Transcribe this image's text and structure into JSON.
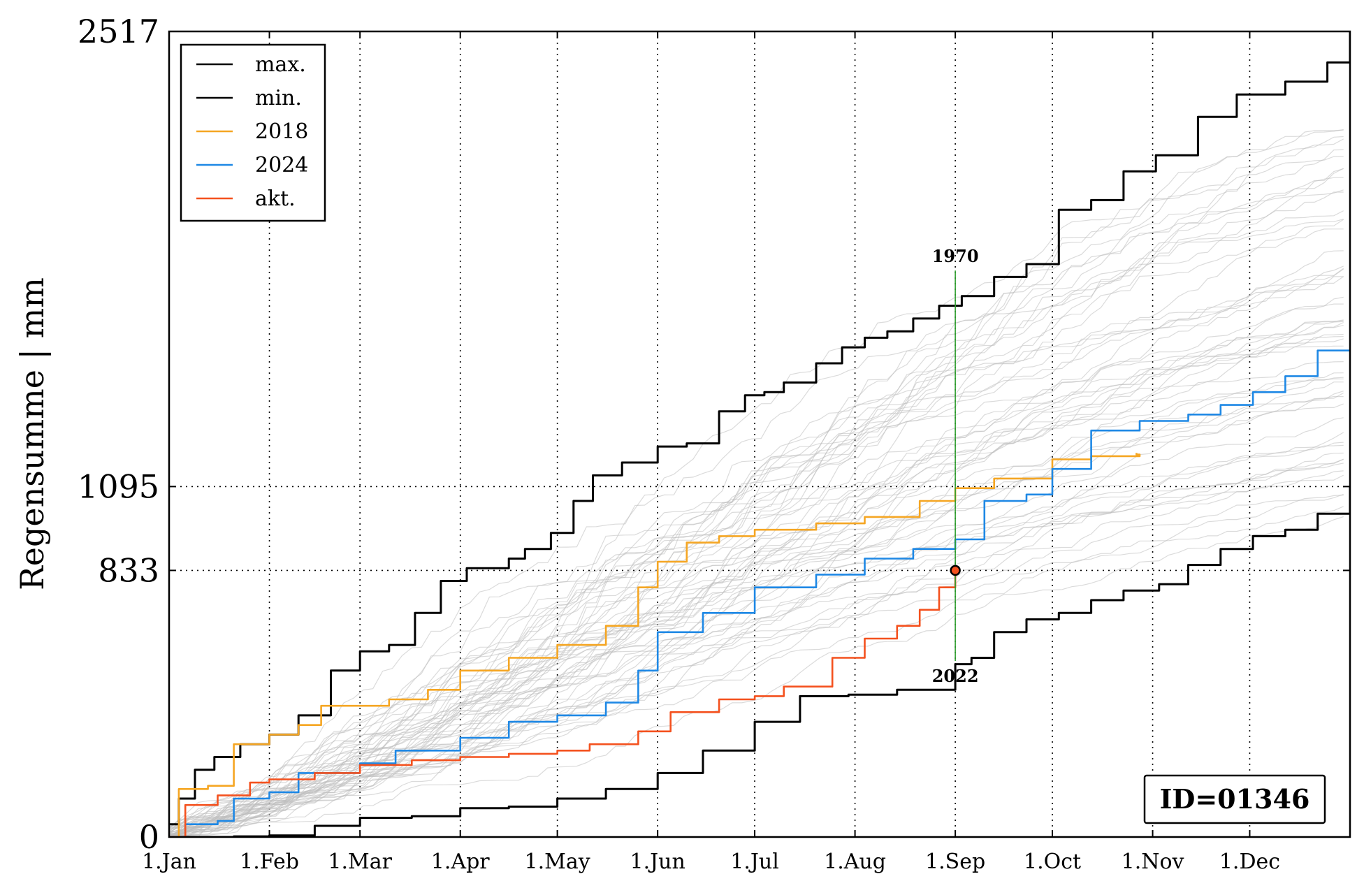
{
  "chart_data": {
    "type": "line",
    "title": "",
    "xlabel": "",
    "ylabel": "Regensumme | mm",
    "x_ticks": [
      "1.Jan",
      "1.Feb",
      "1.Mar",
      "1.Apr",
      "1.May",
      "1.Jun",
      "1.Jul",
      "1.Aug",
      "1.Sep",
      "1.Oct",
      "1.Nov",
      "1.Dec"
    ],
    "x_tick_days": [
      0,
      31,
      59,
      90,
      120,
      151,
      181,
      212,
      243,
      273,
      304,
      334
    ],
    "xlim": [
      0,
      365
    ],
    "y_ticks": [
      0,
      833,
      1095,
      2517
    ],
    "ylim": [
      0,
      2517
    ],
    "grid": "dotted",
    "legend": {
      "position": "top-left",
      "entries": [
        {
          "label": "max.",
          "color": "#000000"
        },
        {
          "label": "min.",
          "color": "#000000"
        },
        {
          "label": "2018",
          "color": "#f5a623"
        },
        {
          "label": "2024",
          "color": "#1e88e5"
        },
        {
          "label": "akt.",
          "color": "#f4511e"
        }
      ]
    },
    "series": [
      {
        "name": "max.",
        "color": "#000000",
        "points": [
          [
            0,
            40
          ],
          [
            3,
            120
          ],
          [
            8,
            210
          ],
          [
            14,
            250
          ],
          [
            22,
            290
          ],
          [
            31,
            320
          ],
          [
            40,
            380
          ],
          [
            50,
            520
          ],
          [
            59,
            580
          ],
          [
            68,
            600
          ],
          [
            76,
            700
          ],
          [
            84,
            800
          ],
          [
            92,
            840
          ],
          [
            105,
            870
          ],
          [
            110,
            900
          ],
          [
            118,
            950
          ],
          [
            125,
            1050
          ],
          [
            131,
            1130
          ],
          [
            140,
            1170
          ],
          [
            151,
            1220
          ],
          [
            160,
            1230
          ],
          [
            170,
            1330
          ],
          [
            178,
            1380
          ],
          [
            184,
            1390
          ],
          [
            190,
            1420
          ],
          [
            200,
            1480
          ],
          [
            208,
            1530
          ],
          [
            215,
            1560
          ],
          [
            222,
            1580
          ],
          [
            230,
            1620
          ],
          [
            238,
            1660
          ],
          [
            245,
            1690
          ],
          [
            255,
            1750
          ],
          [
            265,
            1790
          ],
          [
            275,
            1960
          ],
          [
            285,
            1990
          ],
          [
            295,
            2080
          ],
          [
            305,
            2130
          ],
          [
            318,
            2250
          ],
          [
            330,
            2320
          ],
          [
            345,
            2360
          ],
          [
            358,
            2420
          ],
          [
            365,
            2517
          ]
        ]
      },
      {
        "name": "min.",
        "color": "#000000",
        "points": [
          [
            0,
            0
          ],
          [
            20,
            2
          ],
          [
            31,
            5
          ],
          [
            45,
            35
          ],
          [
            59,
            60
          ],
          [
            75,
            65
          ],
          [
            90,
            90
          ],
          [
            105,
            95
          ],
          [
            120,
            120
          ],
          [
            135,
            150
          ],
          [
            151,
            200
          ],
          [
            165,
            270
          ],
          [
            181,
            360
          ],
          [
            195,
            440
          ],
          [
            210,
            445
          ],
          [
            225,
            460
          ],
          [
            243,
            540
          ],
          [
            248,
            560
          ],
          [
            255,
            640
          ],
          [
            265,
            680
          ],
          [
            275,
            700
          ],
          [
            285,
            740
          ],
          [
            295,
            770
          ],
          [
            306,
            790
          ],
          [
            315,
            850
          ],
          [
            325,
            900
          ],
          [
            335,
            940
          ],
          [
            345,
            960
          ],
          [
            355,
            1010
          ],
          [
            365,
            1095
          ]
        ]
      },
      {
        "name": "2018",
        "color": "#f5a623",
        "points": [
          [
            0,
            0
          ],
          [
            3,
            150
          ],
          [
            12,
            160
          ],
          [
            20,
            290
          ],
          [
            31,
            320
          ],
          [
            40,
            350
          ],
          [
            47,
            410
          ],
          [
            59,
            410
          ],
          [
            68,
            430
          ],
          [
            80,
            460
          ],
          [
            90,
            520
          ],
          [
            105,
            560
          ],
          [
            120,
            600
          ],
          [
            135,
            660
          ],
          [
            145,
            780
          ],
          [
            151,
            860
          ],
          [
            160,
            920
          ],
          [
            170,
            940
          ],
          [
            181,
            960
          ],
          [
            200,
            980
          ],
          [
            215,
            1000
          ],
          [
            232,
            1050
          ],
          [
            243,
            1090
          ],
          [
            255,
            1120
          ],
          [
            268,
            1120
          ],
          [
            273,
            1180
          ],
          [
            285,
            1190
          ],
          [
            300,
            1195
          ],
          [
            299,
            1200
          ]
        ]
      },
      {
        "name": "2024",
        "color": "#1e88e5",
        "points": [
          [
            0,
            0
          ],
          [
            5,
            40
          ],
          [
            15,
            50
          ],
          [
            20,
            120
          ],
          [
            31,
            140
          ],
          [
            40,
            200
          ],
          [
            59,
            230
          ],
          [
            70,
            270
          ],
          [
            90,
            310
          ],
          [
            105,
            360
          ],
          [
            120,
            380
          ],
          [
            135,
            420
          ],
          [
            145,
            520
          ],
          [
            151,
            640
          ],
          [
            165,
            700
          ],
          [
            181,
            780
          ],
          [
            200,
            820
          ],
          [
            215,
            870
          ],
          [
            230,
            900
          ],
          [
            243,
            930
          ],
          [
            252,
            1050
          ],
          [
            265,
            1070
          ],
          [
            273,
            1150
          ],
          [
            285,
            1270
          ],
          [
            300,
            1300
          ],
          [
            315,
            1320
          ],
          [
            325,
            1350
          ],
          [
            335,
            1390
          ],
          [
            345,
            1440
          ],
          [
            355,
            1520
          ],
          [
            365,
            1520
          ]
        ]
      },
      {
        "name": "akt.",
        "color": "#f4511e",
        "points": [
          [
            0,
            0
          ],
          [
            5,
            100
          ],
          [
            15,
            130
          ],
          [
            25,
            170
          ],
          [
            31,
            180
          ],
          [
            45,
            200
          ],
          [
            59,
            225
          ],
          [
            75,
            240
          ],
          [
            90,
            250
          ],
          [
            105,
            260
          ],
          [
            120,
            270
          ],
          [
            130,
            290
          ],
          [
            145,
            330
          ],
          [
            155,
            390
          ],
          [
            170,
            430
          ],
          [
            181,
            440
          ],
          [
            190,
            470
          ],
          [
            205,
            560
          ],
          [
            215,
            620
          ],
          [
            225,
            660
          ],
          [
            232,
            710
          ],
          [
            238,
            780
          ],
          [
            243,
            833
          ]
        ]
      }
    ],
    "current_marker": {
      "day": 243,
      "value": 833
    },
    "range_line": {
      "day": 243,
      "top_value": 1770,
      "bottom_value": 550,
      "top_label": "1970",
      "bottom_label": "2022"
    },
    "badge": "ID=01346"
  }
}
